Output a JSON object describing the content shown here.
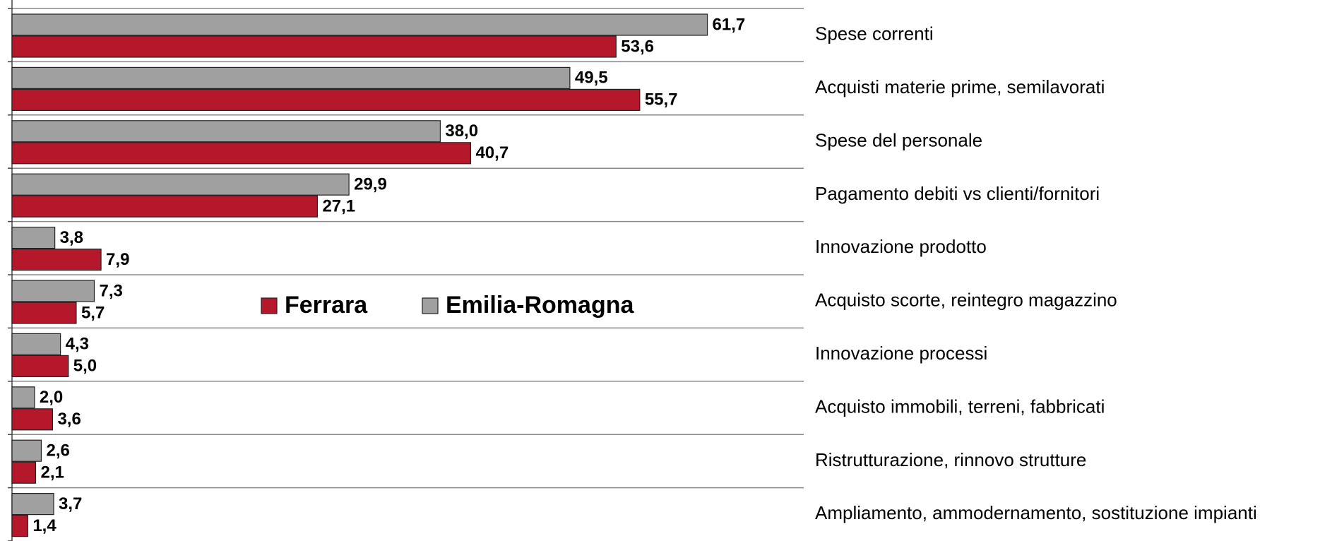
{
  "chart_data": {
    "type": "bar",
    "orientation": "horizontal",
    "categories": [
      "Spese correnti",
      "Acquisti materie prime, semilavorati",
      "Spese del personale",
      "Pagamento debiti vs clienti/fornitori",
      "Innovazione prodotto",
      "Acquisto scorte, reintegro magazzino",
      "Innovazione processi",
      "Acquisto immobili, terreni, fabbricati",
      "Ristrutturazione, rinnovo strutture",
      "Ampliamento, ammodernamento, sostituzione impianti"
    ],
    "series": [
      {
        "name": "Ferrara",
        "color": "#b5182b",
        "values": [
          53.6,
          55.7,
          40.7,
          27.1,
          7.9,
          5.7,
          5.0,
          3.6,
          2.1,
          1.4
        ],
        "value_labels": [
          "53,6",
          "55,7",
          "40,7",
          "27,1",
          "7,9",
          "5,7",
          "5,0",
          "3,6",
          "2,1",
          "1,4"
        ]
      },
      {
        "name": "Emilia-Romagna",
        "color": "#a0a0a0",
        "values": [
          61.7,
          49.5,
          38.0,
          29.9,
          3.8,
          7.3,
          4.3,
          2.0,
          2.6,
          3.7
        ],
        "value_labels": [
          "61,7",
          "49,5",
          "38,0",
          "29,9",
          "3,8",
          "7,3",
          "4,3",
          "2,0",
          "2,6",
          "3,7"
        ]
      }
    ],
    "xlim": [
      0,
      70
    ]
  }
}
